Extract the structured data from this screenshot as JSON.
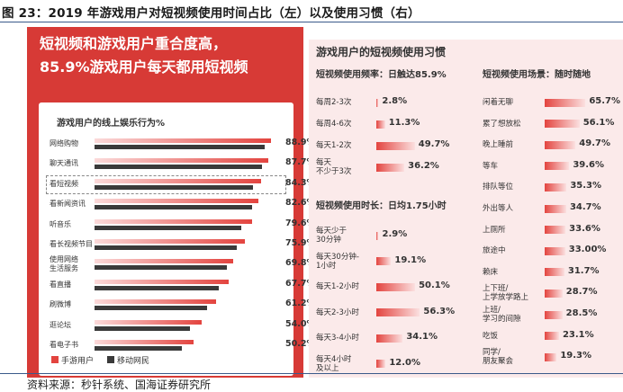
{
  "figure_title": "图 23：2019 年游戏用户对短视频使用时间占比（左）以及使用习惯（右）",
  "source": "资料来源：秒针系统、国海证券研究所",
  "colors": {
    "accent": "#d73a36",
    "mobile": "#3a3a3a",
    "right_bg": "#fbeaea"
  },
  "left": {
    "headline_1": "短视频和游戏用户重合度高，",
    "headline_2": "85.9%游戏用户每天都用短视频"
  },
  "right": {
    "title": "游戏用户的短视频使用习惯",
    "freq_title": "短视频使用频率：日触达85.9%",
    "duration_title": "短视频使用时长：日均1.75小时",
    "scene_title": "短视频使用场景：随时随地"
  },
  "chart_data": [
    {
      "type": "bar",
      "title": "游戏用户的线上娱乐行为%",
      "categories": [
        "网络购物",
        "聊天通讯",
        "看短视频",
        "看新闻资讯",
        "听音乐",
        "看长视频节目",
        "使用网络生活服务",
        "看直播",
        "刷微博",
        "逛论坛",
        "看电子书"
      ],
      "category_lines": [
        [
          "网络购物"
        ],
        [
          "聊天通讯"
        ],
        [
          "看短视频"
        ],
        [
          "看新闻资讯"
        ],
        [
          "听音乐"
        ],
        [
          "看长视频节目"
        ],
        [
          "使用网络",
          "生活服务"
        ],
        [
          "看直播"
        ],
        [
          "刷微博"
        ],
        [
          "逛论坛"
        ],
        [
          "看电子书"
        ]
      ],
      "labels": [
        "88.9%",
        "87.7%",
        "84.3%",
        "82.6%",
        "79.6%",
        "75.9%",
        "69.8%",
        "67.7%",
        "61.2%",
        "54.0%",
        "50.2%"
      ],
      "series": [
        {
          "name": "手游用户",
          "values": [
            88.9,
            87.7,
            84.3,
            82.6,
            79.6,
            75.9,
            69.8,
            67.7,
            61.2,
            54.0,
            50.2
          ]
        },
        {
          "name": "移动网民",
          "values": [
            86,
            84.5,
            80,
            79.5,
            74,
            72,
            67,
            62.5,
            57,
            48,
            44
          ]
        }
      ],
      "highlight": "看短视频",
      "xlim": [
        0,
        100
      ]
    },
    {
      "type": "bar",
      "title": "短视频使用频率：日触达85.9%",
      "categories": [
        "每周2-3次",
        "每周4-6次",
        "每天1-2次",
        "每天不少于3次"
      ],
      "category_lines": [
        [
          "每周2-3次"
        ],
        [
          "每周4-6次"
        ],
        [
          "每天1-2次"
        ],
        [
          "每天",
          "不少于3次"
        ]
      ],
      "values": [
        2.8,
        11.3,
        49.7,
        36.2
      ],
      "labels": [
        "2.8%",
        "11.3%",
        "49.7%",
        "36.2%"
      ]
    },
    {
      "type": "bar",
      "title": "短视频使用时长：日均1.75小时",
      "categories": [
        "每天少于30分钟",
        "每天30分钟-1小时",
        "每天1-2小时",
        "每天2-3小时",
        "每天3-4小时",
        "每天4小时及以上"
      ],
      "category_lines": [
        [
          "每天少于",
          "30分钟"
        ],
        [
          "每天30分钟-",
          "1小时"
        ],
        [
          "每天1-2小时"
        ],
        [
          "每天2-3小时"
        ],
        [
          "每天3-4小时"
        ],
        [
          "每天4小时",
          "及以上"
        ]
      ],
      "values": [
        2.9,
        19.1,
        50.1,
        56.3,
        34.1,
        12.0
      ],
      "labels": [
        "2.9%",
        "19.1%",
        "50.1%",
        "56.3%",
        "34.1%",
        "12.0%"
      ]
    },
    {
      "type": "bar",
      "title": "短视频使用场景：随时随地",
      "categories": [
        "闲着无聊",
        "累了想放松",
        "晚上睡前",
        "等车",
        "排队等位",
        "外出等人",
        "上厕所",
        "旅途中",
        "赖床",
        "上下班/上学放学路上",
        "上班/学习的间隙",
        "吃饭",
        "同学/朋友聚会"
      ],
      "category_lines": [
        [
          "闲着无聊"
        ],
        [
          "累了想放松"
        ],
        [
          "晚上睡前"
        ],
        [
          "等车"
        ],
        [
          "排队等位"
        ],
        [
          "外出等人"
        ],
        [
          "上厕所"
        ],
        [
          "旅途中"
        ],
        [
          "赖床"
        ],
        [
          "上下班/",
          "上学放学路上"
        ],
        [
          "上班/",
          "学习的间隙"
        ],
        [
          "吃饭"
        ],
        [
          "同学/",
          "朋友聚会"
        ]
      ],
      "values": [
        65.7,
        56.1,
        49.7,
        39.6,
        35.3,
        34.7,
        33.6,
        33.0,
        31.7,
        28.7,
        28.5,
        23.1,
        19.3
      ],
      "labels": [
        "65.7%",
        "56.1%",
        "49.7%",
        "39.6%",
        "35.3%",
        "34.7%",
        "33.6%",
        "33.00%",
        "31.7%",
        "28.7%",
        "28.5%",
        "23.1%",
        "19.3%"
      ]
    }
  ]
}
